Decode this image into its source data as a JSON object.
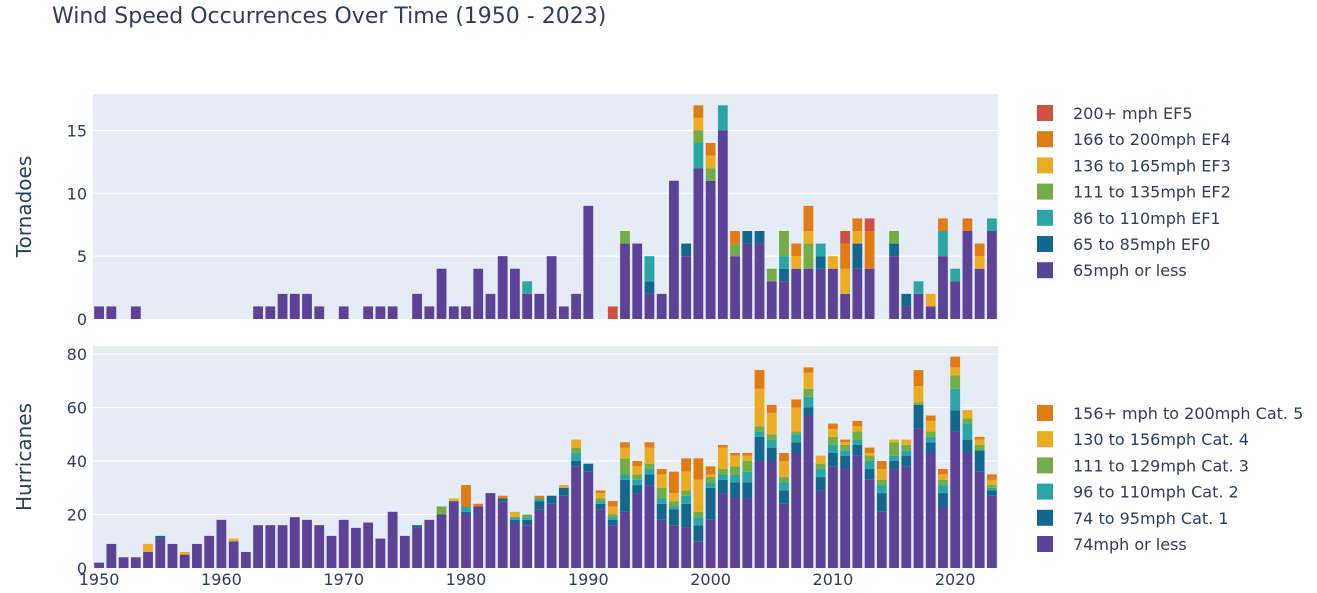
{
  "title": "Wind Speed Occurrences Over Time (1950 - 2023)",
  "chart_data": [
    {
      "type": "bar",
      "stacked": true,
      "ylabel": "Tornadoes",
      "ylim": [
        0,
        17.9
      ],
      "yticks": [
        0,
        5,
        10,
        15
      ],
      "x": [
        1950,
        1951,
        1952,
        1953,
        1954,
        1955,
        1956,
        1957,
        1958,
        1959,
        1960,
        1961,
        1962,
        1963,
        1964,
        1965,
        1966,
        1967,
        1968,
        1969,
        1970,
        1971,
        1972,
        1973,
        1974,
        1975,
        1976,
        1977,
        1978,
        1979,
        1980,
        1981,
        1982,
        1983,
        1984,
        1985,
        1986,
        1987,
        1988,
        1989,
        1990,
        1991,
        1992,
        1993,
        1994,
        1995,
        1996,
        1997,
        1998,
        1999,
        2000,
        2001,
        2002,
        2003,
        2004,
        2005,
        2006,
        2007,
        2008,
        2009,
        2010,
        2011,
        2012,
        2013,
        2014,
        2015,
        2016,
        2017,
        2018,
        2019,
        2020,
        2021,
        2022,
        2023
      ],
      "series": [
        {
          "name": "65mph or less",
          "color": "#5c4397",
          "values": [
            1,
            1,
            0,
            1,
            0,
            0,
            0,
            0,
            0,
            0,
            0,
            0,
            0,
            1,
            1,
            2,
            2,
            2,
            1,
            0,
            1,
            0,
            1,
            1,
            1,
            0,
            2,
            1,
            4,
            1,
            1,
            4,
            2,
            5,
            4,
            2,
            2,
            5,
            1,
            2,
            9,
            0,
            0,
            6,
            6,
            2,
            2,
            11,
            5,
            12,
            11,
            15,
            5,
            6,
            6,
            3,
            3,
            4,
            4,
            4,
            4,
            2,
            4,
            4,
            0,
            5,
            1,
            2,
            1,
            5,
            3,
            7,
            4,
            7
          ]
        },
        {
          "name": "65 to 85mph EF0",
          "color": "#14678f",
          "values": [
            0,
            0,
            0,
            0,
            0,
            0,
            0,
            0,
            0,
            0,
            0,
            0,
            0,
            0,
            0,
            0,
            0,
            0,
            0,
            0,
            0,
            0,
            0,
            0,
            0,
            0,
            0,
            0,
            0,
            0,
            0,
            0,
            0,
            0,
            0,
            0,
            0,
            0,
            0,
            0,
            0,
            0,
            0,
            0,
            0,
            1,
            0,
            0,
            1,
            0,
            0,
            0,
            0,
            1,
            1,
            0,
            1,
            0,
            0,
            1,
            0,
            0,
            2,
            0,
            0,
            1,
            1,
            0,
            0,
            0,
            0,
            0,
            0,
            0
          ]
        },
        {
          "name": "86 to 110mph EF1",
          "color": "#2ca6a4",
          "values": [
            0,
            0,
            0,
            0,
            0,
            0,
            0,
            0,
            0,
            0,
            0,
            0,
            0,
            0,
            0,
            0,
            0,
            0,
            0,
            0,
            0,
            0,
            0,
            0,
            0,
            0,
            0,
            0,
            0,
            0,
            0,
            0,
            0,
            0,
            0,
            1,
            0,
            0,
            0,
            0,
            0,
            0,
            0,
            0,
            0,
            2,
            0,
            0,
            0,
            2,
            0,
            2,
            0,
            0,
            0,
            0,
            1,
            0,
            0,
            1,
            0,
            0,
            0,
            0,
            0,
            0,
            0,
            1,
            0,
            2,
            1,
            0,
            0,
            1
          ]
        },
        {
          "name": "111 to 135mph EF2",
          "color": "#72ad46",
          "values": [
            0,
            0,
            0,
            0,
            0,
            0,
            0,
            0,
            0,
            0,
            0,
            0,
            0,
            0,
            0,
            0,
            0,
            0,
            0,
            0,
            0,
            0,
            0,
            0,
            0,
            0,
            0,
            0,
            0,
            0,
            0,
            0,
            0,
            0,
            0,
            0,
            0,
            0,
            0,
            0,
            0,
            0,
            0,
            1,
            0,
            0,
            0,
            0,
            0,
            1,
            1,
            0,
            1,
            0,
            0,
            1,
            2,
            0,
            2,
            0,
            0,
            0,
            0,
            0,
            0,
            1,
            0,
            0,
            0,
            0,
            0,
            0,
            0,
            0
          ]
        },
        {
          "name": "136 to 165mph EF3",
          "color": "#ebac23",
          "values": [
            0,
            0,
            0,
            0,
            0,
            0,
            0,
            0,
            0,
            0,
            0,
            0,
            0,
            0,
            0,
            0,
            0,
            0,
            0,
            0,
            0,
            0,
            0,
            0,
            0,
            0,
            0,
            0,
            0,
            0,
            0,
            0,
            0,
            0,
            0,
            0,
            0,
            0,
            0,
            0,
            0,
            0,
            0,
            0,
            0,
            0,
            0,
            0,
            0,
            1,
            1,
            0,
            0,
            0,
            0,
            0,
            0,
            1,
            1,
            0,
            1,
            2,
            1,
            0,
            0,
            0,
            0,
            0,
            1,
            0,
            0,
            0,
            1,
            0
          ]
        },
        {
          "name": "166 to 200mph EF4",
          "color": "#e17b14",
          "values": [
            0,
            0,
            0,
            0,
            0,
            0,
            0,
            0,
            0,
            0,
            0,
            0,
            0,
            0,
            0,
            0,
            0,
            0,
            0,
            0,
            0,
            0,
            0,
            0,
            0,
            0,
            0,
            0,
            0,
            0,
            0,
            0,
            0,
            0,
            0,
            0,
            0,
            0,
            0,
            0,
            0,
            0,
            0,
            0,
            0,
            0,
            0,
            0,
            0,
            1,
            1,
            0,
            1,
            0,
            0,
            0,
            0,
            1,
            2,
            0,
            0,
            2,
            1,
            3,
            0,
            0,
            0,
            0,
            0,
            1,
            0,
            1,
            1,
            0
          ]
        },
        {
          "name": "200+ mph EF5",
          "color": "#d1503f",
          "values": [
            0,
            0,
            0,
            0,
            0,
            0,
            0,
            0,
            0,
            0,
            0,
            0,
            0,
            0,
            0,
            0,
            0,
            0,
            0,
            0,
            0,
            0,
            0,
            0,
            0,
            0,
            0,
            0,
            0,
            0,
            0,
            0,
            0,
            0,
            0,
            0,
            0,
            0,
            0,
            0,
            0,
            0,
            1,
            0,
            0,
            0,
            0,
            0,
            0,
            0,
            0,
            0,
            0,
            0,
            0,
            0,
            0,
            0,
            0,
            0,
            0,
            1,
            0,
            1,
            0,
            0,
            0,
            0,
            0,
            0,
            0,
            0,
            0,
            0
          ]
        }
      ]
    },
    {
      "type": "bar",
      "stacked": true,
      "ylabel": "Hurricanes",
      "ylim": [
        0,
        83
      ],
      "yticks": [
        0,
        20,
        40,
        60,
        80
      ],
      "xticks": [
        1950,
        1960,
        1970,
        1980,
        1990,
        2000,
        2010,
        2020
      ],
      "x": [
        1950,
        1951,
        1952,
        1953,
        1954,
        1955,
        1956,
        1957,
        1958,
        1959,
        1960,
        1961,
        1962,
        1963,
        1964,
        1965,
        1966,
        1967,
        1968,
        1969,
        1970,
        1971,
        1972,
        1973,
        1974,
        1975,
        1976,
        1977,
        1978,
        1979,
        1980,
        1981,
        1982,
        1983,
        1984,
        1985,
        1986,
        1987,
        1988,
        1989,
        1990,
        1991,
        1992,
        1993,
        1994,
        1995,
        1996,
        1997,
        1998,
        1999,
        2000,
        2001,
        2002,
        2003,
        2004,
        2005,
        2006,
        2007,
        2008,
        2009,
        2010,
        2011,
        2012,
        2013,
        2014,
        2015,
        2016,
        2017,
        2018,
        2019,
        2020,
        2021,
        2022,
        2023
      ],
      "series": [
        {
          "name": "74mph or less",
          "color": "#5c4397",
          "values": [
            2,
            9,
            4,
            4,
            6,
            11,
            9,
            5,
            9,
            12,
            18,
            10,
            6,
            16,
            16,
            16,
            19,
            18,
            16,
            12,
            18,
            15,
            17,
            11,
            21,
            12,
            15,
            18,
            20,
            25,
            20,
            23,
            28,
            25,
            17,
            16,
            22,
            24,
            27,
            38,
            36,
            22,
            16,
            21,
            28,
            31,
            18,
            16,
            15,
            10,
            18,
            28,
            26,
            26,
            40,
            40,
            24,
            43,
            57,
            29,
            38,
            37,
            42,
            33,
            21,
            37,
            38,
            52,
            43,
            23,
            51,
            43,
            36,
            27
          ]
        },
        {
          "name": "74 to 95mph Cat. 1",
          "color": "#14678f",
          "values": [
            0,
            0,
            0,
            0,
            0,
            1,
            0,
            0,
            0,
            0,
            0,
            0,
            0,
            0,
            0,
            0,
            0,
            0,
            0,
            0,
            0,
            0,
            0,
            0,
            0,
            0,
            1,
            0,
            0,
            0,
            1,
            0,
            0,
            1,
            1,
            2,
            3,
            3,
            3,
            2,
            3,
            2,
            2,
            12,
            3,
            4,
            6,
            6,
            9,
            6,
            12,
            5,
            6,
            6,
            9,
            5,
            5,
            4,
            3,
            5,
            5,
            5,
            4,
            4,
            7,
            3,
            4,
            9,
            4,
            5,
            8,
            5,
            8,
            2
          ]
        },
        {
          "name": "96 to 110mph Cat. 2",
          "color": "#2ca6a4",
          "values": [
            0,
            0,
            0,
            0,
            0,
            0,
            0,
            0,
            0,
            0,
            0,
            0,
            0,
            0,
            0,
            0,
            0,
            0,
            0,
            0,
            0,
            0,
            0,
            0,
            0,
            0,
            0,
            0,
            0,
            0,
            2,
            0,
            0,
            0,
            1,
            1,
            1,
            0,
            0,
            3,
            0,
            1,
            1,
            2,
            2,
            2,
            2,
            1,
            3,
            3,
            2,
            2,
            3,
            4,
            2,
            3,
            3,
            3,
            4,
            3,
            3,
            2,
            2,
            3,
            3,
            2,
            2,
            0,
            2,
            3,
            8,
            6,
            0,
            1
          ]
        },
        {
          "name": "111 to 129mph Cat. 3",
          "color": "#72ad46",
          "values": [
            0,
            0,
            0,
            0,
            0,
            0,
            0,
            0,
            0,
            0,
            0,
            0,
            0,
            0,
            0,
            0,
            0,
            0,
            0,
            0,
            0,
            0,
            0,
            0,
            0,
            0,
            0,
            0,
            3,
            0,
            0,
            0,
            0,
            0,
            0,
            1,
            0,
            0,
            0,
            2,
            0,
            1,
            1,
            6,
            2,
            2,
            4,
            2,
            2,
            2,
            2,
            2,
            3,
            4,
            2,
            2,
            2,
            1,
            3,
            2,
            3,
            2,
            3,
            2,
            2,
            5,
            2,
            1,
            2,
            2,
            5,
            2,
            2,
            1
          ]
        },
        {
          "name": "130 to 156mph Cat. 4",
          "color": "#ebac23",
          "values": [
            0,
            0,
            0,
            0,
            3,
            0,
            0,
            1,
            0,
            0,
            0,
            1,
            0,
            0,
            0,
            0,
            0,
            0,
            0,
            0,
            0,
            0,
            0,
            0,
            0,
            0,
            0,
            0,
            0,
            1,
            0,
            0,
            0,
            0,
            2,
            0,
            0,
            0,
            1,
            3,
            0,
            2,
            3,
            4,
            3,
            6,
            5,
            3,
            7,
            12,
            1,
            8,
            4,
            2,
            14,
            8,
            6,
            9,
            6,
            3,
            3,
            1,
            2,
            1,
            4,
            1,
            2,
            6,
            4,
            2,
            3,
            3,
            2,
            2
          ]
        },
        {
          "name": "156+ mph to 200mph Cat. 5",
          "color": "#e17b14",
          "values": [
            0,
            0,
            0,
            0,
            0,
            0,
            0,
            0,
            0,
            0,
            0,
            0,
            0,
            0,
            0,
            0,
            0,
            0,
            0,
            0,
            0,
            0,
            0,
            0,
            0,
            0,
            0,
            0,
            0,
            0,
            8,
            1,
            0,
            1,
            0,
            0,
            1,
            0,
            0,
            0,
            0,
            1,
            2,
            2,
            2,
            2,
            2,
            8,
            5,
            8,
            3,
            1,
            1,
            1,
            7,
            3,
            3,
            3,
            2,
            0,
            2,
            1,
            2,
            2,
            3,
            0,
            0,
            6,
            2,
            2,
            4,
            0,
            1,
            2
          ]
        }
      ]
    }
  ]
}
